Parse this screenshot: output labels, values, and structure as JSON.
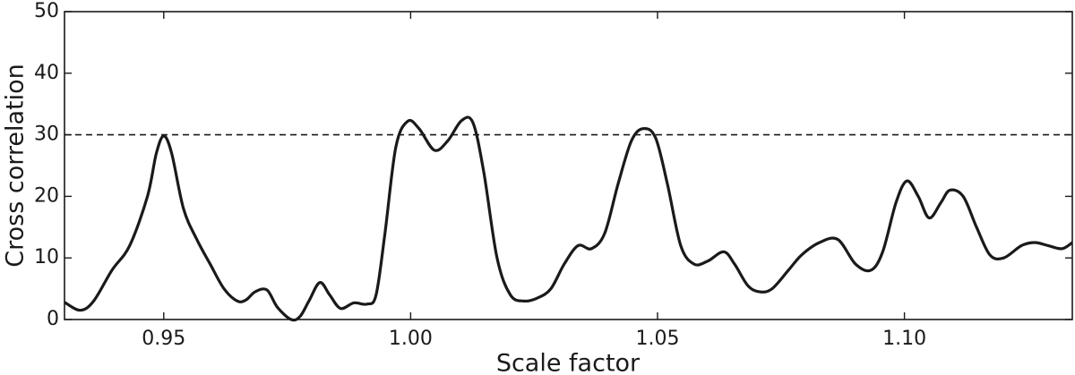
{
  "chart_data": {
    "type": "line",
    "x_label": "Scale factor",
    "y_label": "Cross correlation",
    "x": [
      0.9299,
      0.9331,
      0.9358,
      0.9395,
      0.9431,
      0.9467,
      0.9485,
      0.95,
      0.9516,
      0.954,
      0.9567,
      0.9594,
      0.9622,
      0.9649,
      0.9667,
      0.9685,
      0.9709,
      0.973,
      0.9758,
      0.9776,
      0.9794,
      0.9816,
      0.9836,
      0.9858,
      0.9885,
      0.9912,
      0.993,
      0.9948,
      0.997,
      0.9994,
      1.0017,
      1.0048,
      1.0075,
      1.0103,
      1.0126,
      1.0148,
      1.0175,
      1.0202,
      1.023,
      1.0257,
      1.0284,
      1.0311,
      1.0339,
      1.0366,
      1.0393,
      1.042,
      1.0447,
      1.0471,
      1.0496,
      1.052,
      1.0547,
      1.0574,
      1.0602,
      1.0634,
      1.0656,
      1.0683,
      1.0707,
      1.0732,
      1.0765,
      1.0792,
      1.0828,
      1.0865,
      1.0901,
      1.0932,
      1.0956,
      1.0983,
      1.1005,
      1.1028,
      1.105,
      1.1074,
      1.1092,
      1.1119,
      1.1146,
      1.1173,
      1.1201,
      1.1237,
      1.1264,
      1.1291,
      1.1319,
      1.134
    ],
    "series": [
      {
        "color": "#1a1a1a",
        "values": [
          2.8,
          1.5,
          3,
          8,
          12,
          20,
          27,
          29.8,
          27,
          18,
          13,
          9,
          5,
          3,
          3.2,
          4.5,
          4.8,
          2,
          0,
          0.5,
          3,
          6,
          4,
          1.8,
          2.7,
          2.5,
          4,
          14,
          28,
          32.2,
          31,
          27.5,
          29,
          32.3,
          32,
          24,
          10,
          4,
          3,
          3.5,
          5,
          9,
          12,
          11.5,
          14,
          22,
          29,
          31,
          29.5,
          22,
          12,
          9,
          9.5,
          11,
          9,
          5.5,
          4.5,
          5,
          8,
          10.5,
          12.5,
          13,
          9,
          8,
          11,
          19,
          22.5,
          20,
          16.5,
          19,
          21,
          20,
          15,
          10.5,
          10,
          12,
          12.5,
          12,
          11.5,
          12.5
        ]
      }
    ],
    "threshold": 30,
    "xlim": [
      0.9299,
      1.134
    ],
    "ylim": [
      0,
      50
    ],
    "xticks": [
      0.95,
      {
        "value": 1,
        "label": "1.00"
      },
      1.05,
      {
        "value": 1.1,
        "label": "1.10"
      }
    ],
    "yticks": [
      0,
      10,
      20,
      30,
      40,
      50
    ]
  }
}
